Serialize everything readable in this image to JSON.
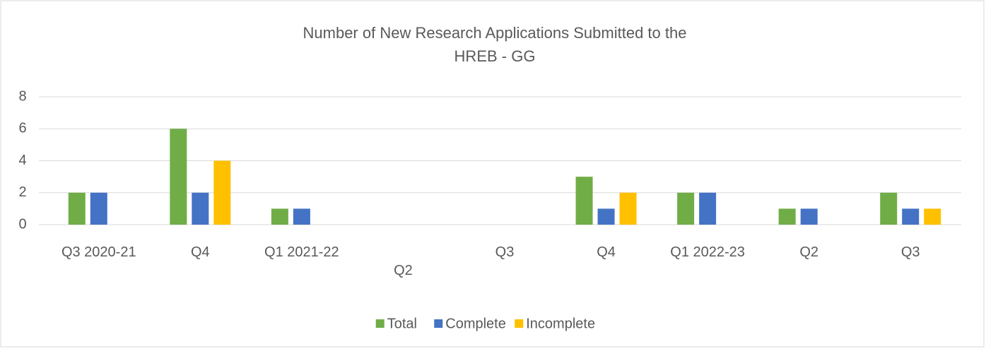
{
  "chart_data": {
    "type": "bar",
    "title": "Number of New Research Applications Submitted to the HREB - GG",
    "categories": [
      "Q3  2020-21",
      "Q4",
      "Q1 2021-22",
      "Q2",
      "Q3",
      "Q4",
      "Q1 2022-23",
      "Q2",
      "Q3"
    ],
    "series": [
      {
        "name": "Total",
        "color": "#70ad47",
        "values": [
          2,
          6,
          1,
          0,
          0,
          3,
          2,
          1,
          2
        ]
      },
      {
        "name": "Complete",
        "color": "#4472c4",
        "values": [
          2,
          2,
          1,
          0,
          0,
          1,
          2,
          1,
          1
        ]
      },
      {
        "name": "Incomplete",
        "color": "#ffc000",
        "values": [
          0,
          4,
          0,
          0,
          0,
          2,
          0,
          0,
          1
        ]
      }
    ],
    "ylim": [
      0,
      8
    ],
    "yticks": [
      0,
      2,
      4,
      6,
      8
    ],
    "grid": true,
    "legend": "bottom"
  }
}
